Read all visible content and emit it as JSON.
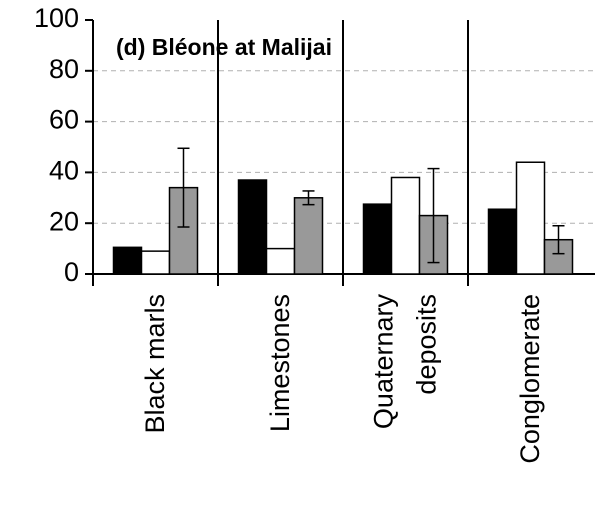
{
  "chart_data": {
    "type": "bar",
    "title": "(d) Bléone at Malijai",
    "categories": [
      "Black marls",
      "Limestones",
      "Quaternary deposits",
      "Conglomerate"
    ],
    "series": [
      {
        "color": "#000000",
        "values": [
          10.5,
          37,
          27.5,
          25.5
        ]
      },
      {
        "color": "#ffffff",
        "values": [
          9,
          10,
          38,
          44
        ]
      },
      {
        "color": "#999999",
        "values": [
          34,
          30,
          23,
          13.5
        ],
        "errors": [
          15.5,
          2.7,
          18.5,
          5.5
        ]
      }
    ],
    "ylim": [
      0,
      100
    ],
    "yticks": [
      0,
      20,
      40,
      60,
      80,
      100
    ],
    "grid": true
  }
}
